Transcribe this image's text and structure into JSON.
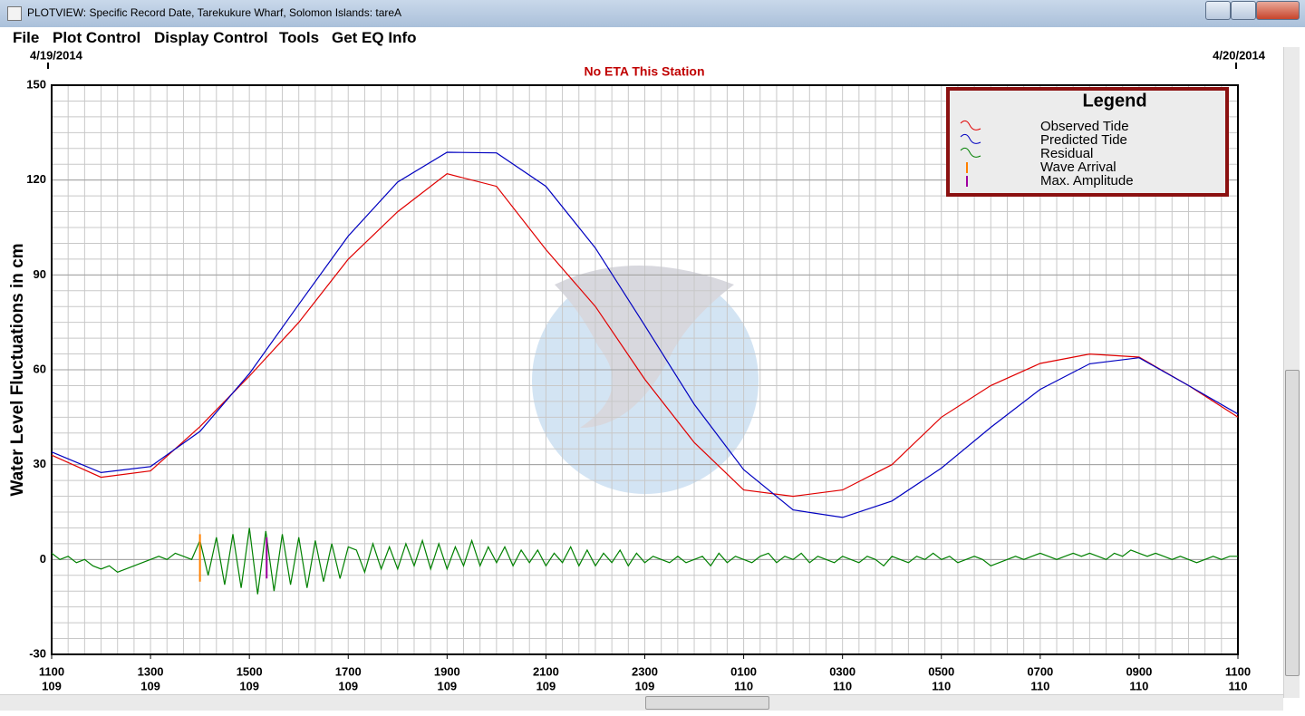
{
  "window": {
    "title": "PLOTVIEW: Specific Record Date, Tarekukure Wharf, Solomon Islands: tareA"
  },
  "menu": [
    "File",
    "Plot Control",
    "Display Control",
    "Tools",
    "Get EQ Info"
  ],
  "chart_data": {
    "type": "line",
    "title": "No ETA This Station",
    "start_date": "4/19/2014",
    "end_date": "4/20/2014",
    "y_label": "Water Level Fluctuations in cm",
    "ylim": [
      -30,
      150
    ],
    "yticks": [
      -30,
      0,
      30,
      60,
      90,
      120,
      150
    ],
    "grid": true,
    "xticks": [
      {
        "label": "1100",
        "day": "109"
      },
      {
        "label": "1300",
        "day": "109"
      },
      {
        "label": "1500",
        "day": "109"
      },
      {
        "label": "1700",
        "day": "109"
      },
      {
        "label": "1900",
        "day": "109"
      },
      {
        "label": "2100",
        "day": "109"
      },
      {
        "label": "2300",
        "day": "109"
      },
      {
        "label": "0100",
        "day": "110"
      },
      {
        "label": "0300",
        "day": "110"
      },
      {
        "label": "0500",
        "day": "110"
      },
      {
        "label": "0700",
        "day": "110"
      },
      {
        "label": "0900",
        "day": "110"
      },
      {
        "label": "1100",
        "day": "110"
      }
    ],
    "legend": {
      "title": "Legend",
      "position": "upper right"
    },
    "series": [
      {
        "name": "Observed Tide",
        "color": "#e00000",
        "values": [
          33,
          26,
          28,
          42,
          58,
          75,
          95,
          110,
          122,
          118,
          98,
          80,
          57,
          37,
          22,
          20,
          22,
          30,
          45,
          55,
          62,
          65,
          64,
          55,
          45
        ]
      },
      {
        "name": "Predicted Tide",
        "color": "#0000c0",
        "values": [
          34,
          27.5,
          29.4,
          40.5,
          58.8,
          80.7,
          102.3,
          119.4,
          128.8,
          128.6,
          118,
          98.5,
          74,
          49.1,
          28.4,
          15.7,
          13.3,
          18.5,
          28.9,
          41.8,
          53.8,
          61.9,
          63.8,
          55,
          46
        ]
      },
      {
        "name": "Residual",
        "color": "#008000",
        "values": [
          2,
          0,
          1,
          -1,
          0,
          -2,
          -3,
          -2,
          -4,
          -3,
          -2,
          -1,
          0,
          1,
          0,
          2,
          1,
          0,
          6,
          -5,
          7,
          -8,
          8,
          -9,
          10,
          -11,
          9,
          -10,
          8,
          -8,
          7,
          -9,
          6,
          -7,
          5,
          -6,
          4,
          3,
          -4,
          5,
          -3,
          4,
          -3,
          5,
          -2,
          6,
          -3,
          5,
          -3,
          4,
          -2,
          6,
          -2,
          4,
          -1,
          4,
          -2,
          3,
          -1,
          3,
          -2,
          2,
          -1,
          4,
          -2,
          3,
          -2,
          2,
          -1,
          3,
          -2,
          2,
          -1,
          1,
          0,
          -1,
          1,
          -1,
          0,
          1,
          -2,
          2,
          -1,
          1,
          0,
          -1,
          1,
          2,
          -1,
          1,
          0,
          2,
          -1,
          1,
          0,
          -1,
          1,
          0,
          -1,
          1,
          0,
          -2,
          1,
          0,
          -1,
          1,
          0,
          2,
          0,
          1,
          -1,
          0,
          1,
          0,
          -2,
          -1,
          0,
          1,
          0,
          1,
          2,
          1,
          0,
          1,
          2,
          1,
          2,
          1,
          0,
          2,
          1,
          3,
          2,
          1,
          2,
          1,
          0,
          1,
          0,
          -1,
          0,
          1,
          0,
          1,
          1
        ]
      },
      {
        "name": "Wave Arrival",
        "color": "#ff8000",
        "type": "marker",
        "x": "1400",
        "values": [
          -7,
          8
        ]
      },
      {
        "name": "Max. Amplitude",
        "color": "#a000a0",
        "type": "marker",
        "x": "1521",
        "values": [
          -6,
          7
        ]
      }
    ]
  }
}
